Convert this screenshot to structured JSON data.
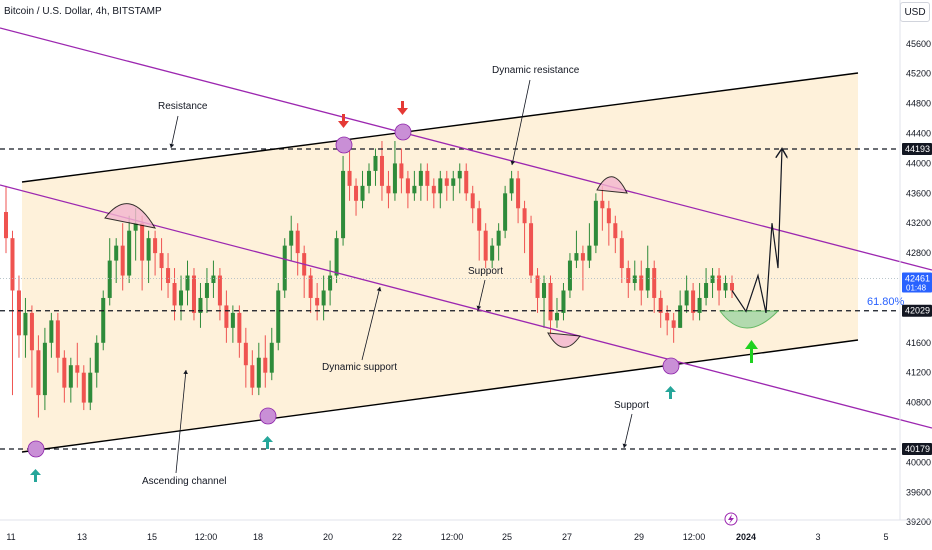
{
  "header": {
    "title": "Bitcoin / U.S. Dollar, 4h, BITSTAMP",
    "currency": "USD"
  },
  "colors": {
    "up": "#26a69a",
    "up_candle": "#2e8b2e",
    "down": "#ef5350",
    "channel_fill": "#fbe7c4",
    "ascending_line": "#000000",
    "descending_line": "#9c27b0",
    "marker_circle": "#ce93d8",
    "arrow_up": "#26a69a",
    "arrow_down": "#e53935",
    "fib": "#2962ff",
    "bowl_green": "#a5d6a7",
    "arc_pink": "#f8bbd0"
  },
  "chart_data": {
    "type": "candlestick",
    "title": "Bitcoin / U.S. Dollar, 4h, BITSTAMP",
    "ylim": [
      38900,
      45900
    ],
    "y_ticks": [
      45600,
      45200,
      44800,
      44400,
      44000,
      43600,
      43200,
      42800,
      41600,
      41200,
      40800,
      40000,
      39600,
      39200
    ],
    "x_ticks": [
      "11",
      "13",
      "15",
      "12:00",
      "18",
      "20",
      "22",
      "12:00",
      "25",
      "27",
      "29",
      "12:00",
      "2024",
      "3",
      "5"
    ],
    "price_tags": [
      {
        "label": "44193",
        "value": 44193,
        "style": "dark"
      },
      {
        "label": "42461",
        "sub": "01:48",
        "value": 42461,
        "style": "blue"
      },
      {
        "label": "42029",
        "value": 42029,
        "style": "dark"
      },
      {
        "label": "40179",
        "value": 40179,
        "style": "dark"
      }
    ],
    "fib_label": "61.80%",
    "horizontal_levels": [
      44193,
      42029,
      40179
    ],
    "annotations": [
      {
        "text": "Dynamic resistance"
      },
      {
        "text": "Resistance"
      },
      {
        "text": "Support"
      },
      {
        "text": "Dynamic support"
      },
      {
        "text": "Support"
      },
      {
        "text": "Ascending channel"
      }
    ],
    "candles": [
      [
        43350,
        43000,
        43700,
        42800
      ],
      [
        43000,
        42300,
        43100,
        40900
      ],
      [
        42300,
        41700,
        42500,
        41400
      ],
      [
        41700,
        42000,
        42200,
        41400
      ],
      [
        42000,
        41500,
        42100,
        41000
      ],
      [
        41500,
        40900,
        41700,
        40600
      ],
      [
        40900,
        41600,
        41800,
        40700
      ],
      [
        41600,
        41900,
        42000,
        41400
      ],
      [
        41900,
        41400,
        42000,
        41200
      ],
      [
        41400,
        41000,
        41500,
        40800
      ],
      [
        41000,
        41300,
        41400,
        40800
      ],
      [
        41300,
        41200,
        41600,
        41000
      ],
      [
        41200,
        40800,
        41300,
        40700
      ],
      [
        40800,
        41200,
        41400,
        40700
      ],
      [
        41200,
        41600,
        41700,
        41000
      ],
      [
        41600,
        42200,
        42300,
        41500
      ],
      [
        42200,
        42700,
        43000,
        42100
      ],
      [
        42700,
        42900,
        43000,
        42400
      ],
      [
        42900,
        42500,
        43200,
        42300
      ],
      [
        42500,
        43100,
        43300,
        42400
      ],
      [
        43100,
        43200,
        43400,
        42700
      ],
      [
        43200,
        42700,
        43300,
        42300
      ],
      [
        42700,
        43000,
        43100,
        42400
      ],
      [
        43000,
        42800,
        43100,
        42500
      ],
      [
        42800,
        42600,
        43000,
        42300
      ],
      [
        42600,
        42400,
        42800,
        42200
      ],
      [
        42400,
        42100,
        42600,
        41900
      ],
      [
        42100,
        42300,
        42500,
        41900
      ],
      [
        42300,
        42500,
        42700,
        42100
      ],
      [
        42500,
        42000,
        42600,
        41900
      ],
      [
        42000,
        42200,
        42400,
        41800
      ],
      [
        42200,
        42400,
        42600,
        42000
      ],
      [
        42400,
        42500,
        42700,
        42200
      ],
      [
        42500,
        42100,
        42600,
        41900
      ],
      [
        42100,
        41800,
        42300,
        41600
      ],
      [
        41800,
        42000,
        42100,
        41600
      ],
      [
        42000,
        41600,
        42100,
        41400
      ],
      [
        41600,
        41300,
        41800,
        41000
      ],
      [
        41300,
        41000,
        41500,
        40900
      ],
      [
        41000,
        41400,
        41600,
        40900
      ],
      [
        41400,
        41200,
        41700,
        41000
      ],
      [
        41200,
        41600,
        41800,
        41100
      ],
      [
        41600,
        42300,
        42400,
        41500
      ],
      [
        42300,
        42900,
        43000,
        42200
      ],
      [
        42900,
        43100,
        43300,
        42700
      ],
      [
        43100,
        42800,
        43200,
        42500
      ],
      [
        42800,
        42500,
        42900,
        42200
      ],
      [
        42500,
        42200,
        42600,
        42000
      ],
      [
        42200,
        42100,
        42400,
        41900
      ],
      [
        42100,
        42300,
        42500,
        41900
      ],
      [
        42300,
        42500,
        42700,
        42100
      ],
      [
        42500,
        43000,
        43100,
        42400
      ],
      [
        43000,
        43900,
        44100,
        42900
      ],
      [
        43900,
        43700,
        44200,
        43500
      ],
      [
        43700,
        43500,
        43800,
        43300
      ],
      [
        43500,
        43700,
        43900,
        43400
      ],
      [
        43700,
        43900,
        44000,
        43600
      ],
      [
        43900,
        44100,
        44200,
        43700
      ],
      [
        44100,
        43700,
        44300,
        43500
      ],
      [
        43700,
        43600,
        43900,
        43400
      ],
      [
        43600,
        44000,
        44300,
        43500
      ],
      [
        44000,
        43800,
        44200,
        43600
      ],
      [
        43800,
        43600,
        43900,
        43400
      ],
      [
        43600,
        43700,
        43900,
        43500
      ],
      [
        43700,
        43900,
        44000,
        43500
      ],
      [
        43900,
        43700,
        44000,
        43500
      ],
      [
        43700,
        43600,
        43800,
        43400
      ],
      [
        43600,
        43800,
        43900,
        43400
      ],
      [
        43800,
        43700,
        43900,
        43500
      ],
      [
        43700,
        43800,
        43900,
        43500
      ],
      [
        43800,
        43900,
        44000,
        43600
      ],
      [
        43900,
        43600,
        44000,
        43500
      ],
      [
        43600,
        43400,
        43700,
        43200
      ],
      [
        43400,
        43100,
        43500,
        42700
      ],
      [
        43100,
        42700,
        43200,
        42600
      ],
      [
        42700,
        42900,
        43000,
        42600
      ],
      [
        42900,
        43100,
        43200,
        42700
      ],
      [
        43100,
        43600,
        43700,
        43000
      ],
      [
        43600,
        43800,
        43900,
        43500
      ],
      [
        43800,
        43400,
        43900,
        43200
      ],
      [
        43400,
        43200,
        43500,
        42800
      ],
      [
        43200,
        42500,
        43300,
        42400
      ],
      [
        42500,
        42200,
        42600,
        42000
      ],
      [
        42200,
        42400,
        42500,
        41800
      ],
      [
        42400,
        41900,
        42500,
        41700
      ],
      [
        41900,
        42000,
        42200,
        41800
      ],
      [
        42000,
        42300,
        42400,
        41900
      ],
      [
        42300,
        42700,
        42800,
        42200
      ],
      [
        42700,
        42800,
        43100,
        42600
      ],
      [
        42800,
        42700,
        42900,
        42300
      ],
      [
        42700,
        42900,
        43200,
        42600
      ],
      [
        42900,
        43500,
        43600,
        42800
      ],
      [
        43500,
        43400,
        43700,
        43100
      ],
      [
        43400,
        43200,
        43500,
        42900
      ],
      [
        43200,
        43000,
        43300,
        42800
      ],
      [
        43000,
        42600,
        43100,
        42400
      ],
      [
        42600,
        42400,
        42700,
        42200
      ],
      [
        42400,
        42500,
        42700,
        42300
      ],
      [
        42500,
        42300,
        42700,
        42100
      ],
      [
        42300,
        42600,
        42900,
        42200
      ],
      [
        42600,
        42200,
        42700,
        42000
      ],
      [
        42200,
        42000,
        42300,
        41800
      ],
      [
        42000,
        41900,
        42100,
        41700
      ],
      [
        41900,
        41800,
        42000,
        41600
      ],
      [
        41800,
        42100,
        42300,
        41800
      ],
      [
        42100,
        42300,
        42500,
        42000
      ],
      [
        42300,
        42000,
        42400,
        41900
      ],
      [
        42000,
        42200,
        42400,
        41900
      ],
      [
        42200,
        42400,
        42600,
        42100
      ],
      [
        42400,
        42500,
        42600,
        42200
      ],
      [
        42500,
        42300,
        42600,
        42100
      ],
      [
        42300,
        42400,
        42500,
        42200
      ],
      [
        42400,
        42300,
        42500,
        42200
      ]
    ],
    "projection": [
      42300,
      42020,
      42500,
      42000,
      43200,
      42600,
      44200
    ]
  }
}
